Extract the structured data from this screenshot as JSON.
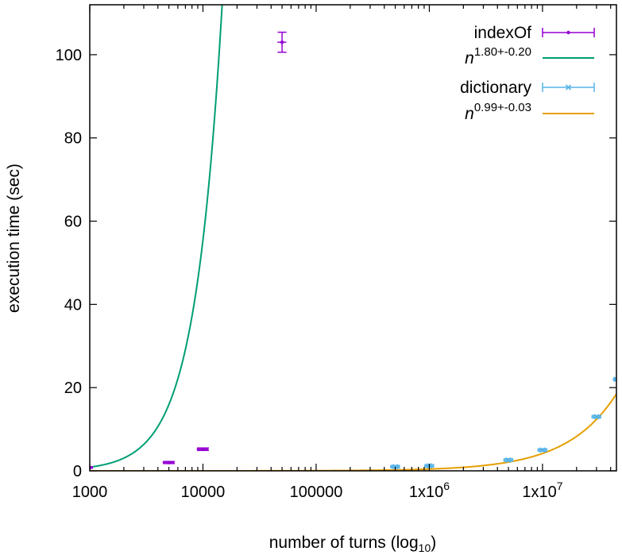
{
  "chart_data": {
    "type": "scatter",
    "xscale": "log",
    "xlim": [
      1000,
      45000000
    ],
    "ylim": [
      0,
      112
    ],
    "grid": false,
    "legend_position": "top-right",
    "xlabel": {
      "text": "number of turns (log",
      "sub": "10",
      "close": ")"
    },
    "ylabel": "execution time (sec)",
    "x_ticks": [
      {
        "value": 1000,
        "label": "1000"
      },
      {
        "value": 10000,
        "label": "10000"
      },
      {
        "value": 100000,
        "label": "100000"
      },
      {
        "value": 1000000,
        "label": "1x10",
        "sup": "6"
      },
      {
        "value": 10000000,
        "label": "1x10",
        "sup": "7"
      }
    ],
    "y_ticks": [
      0,
      20,
      40,
      60,
      80,
      100
    ],
    "series": [
      {
        "name": "indexOf",
        "kind": "errorbars",
        "color": "#9400d3",
        "marker": "dot",
        "points": [
          {
            "x": 1000,
            "y": 0.8,
            "xerr_lo": 60,
            "xerr_hi": 60,
            "yerr": 0.2
          },
          {
            "x": 5000,
            "y": 2.0,
            "xerr_lo": 600,
            "xerr_hi": 600,
            "yerr": 0.25
          },
          {
            "x": 10000,
            "y": 5.2,
            "xerr_lo": 1200,
            "xerr_hi": 1200,
            "yerr": 0.3
          },
          {
            "x": 50000,
            "y": 103,
            "xerr_lo": 4500,
            "xerr_hi": 4500,
            "yerr": 2.4
          }
        ]
      },
      {
        "name": "n",
        "name_sup": "1.80+-0.20",
        "kind": "fit",
        "color": "#009e73",
        "coef": 3.5e-06,
        "exp": 1.8
      },
      {
        "name": "dictionary",
        "kind": "errorbars",
        "color": "#56b4e9",
        "marker": "cross",
        "points": [
          {
            "x": 500000,
            "y": 1.0,
            "xerr_lo": 50000,
            "xerr_hi": 50000,
            "yerr": 0.3
          },
          {
            "x": 1000000,
            "y": 1.2,
            "xerr_lo": 100000,
            "xerr_hi": 100000,
            "yerr": 0.3
          },
          {
            "x": 5000000,
            "y": 2.6,
            "xerr_lo": 500000,
            "xerr_hi": 500000,
            "yerr": 0.3
          },
          {
            "x": 10000000,
            "y": 5.0,
            "xerr_lo": 1000000,
            "xerr_hi": 1000000,
            "yerr": 0.3
          },
          {
            "x": 30000000,
            "y": 13.0,
            "xerr_lo": 3000000,
            "xerr_hi": 3000000,
            "yerr": 0.3
          },
          {
            "x": 45000000,
            "y": 22.0,
            "xerr_lo": 3500000,
            "xerr_hi": 0,
            "yerr": 0.3
          }
        ]
      },
      {
        "name": "n",
        "name_sup": "0.99+-0.03",
        "kind": "fit",
        "color": "#e69f00",
        "coef": 4.9e-07,
        "exp": 0.99
      }
    ]
  }
}
